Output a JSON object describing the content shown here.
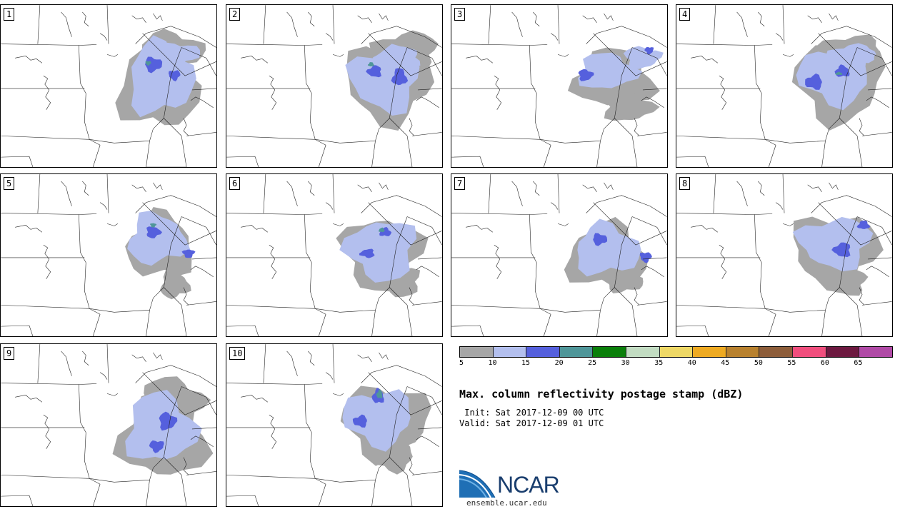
{
  "panels": [
    {
      "label": "1"
    },
    {
      "label": "2"
    },
    {
      "label": "3"
    },
    {
      "label": "4"
    },
    {
      "label": "5"
    },
    {
      "label": "6"
    },
    {
      "label": "7"
    },
    {
      "label": "8"
    },
    {
      "label": "9"
    },
    {
      "label": "10"
    }
  ],
  "colorbar": {
    "colors": [
      "#a6a6a6",
      "#b3bfee",
      "#5560dd",
      "#4f9699",
      "#0a7f0a",
      "#c2dcc2",
      "#eed866",
      "#eeaa22",
      "#b8812e",
      "#8d5d3a",
      "#f04e7d",
      "#6d1940",
      "#b04aa6"
    ],
    "ticks": [
      "5",
      "10",
      "15",
      "20",
      "25",
      "30",
      "35",
      "40",
      "45",
      "50",
      "55",
      "60",
      "65"
    ]
  },
  "title": "Max. column reflectivity postage stamp (dBZ)",
  "init": " Init: Sat 2017-12-09 00 UTC",
  "valid": "Valid: Sat 2017-12-09 01 UTC",
  "logo": {
    "text": "NCAR",
    "url": "ensemble.ucar.edu"
  }
}
